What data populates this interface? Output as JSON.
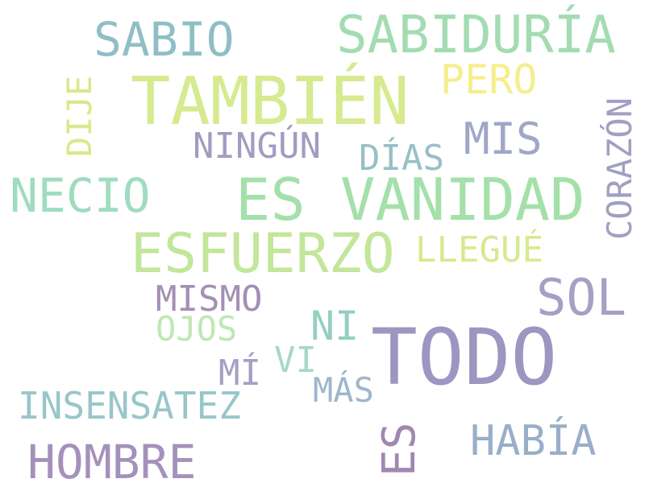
{
  "words": [
    {
      "text": "SABIO",
      "color": "#8fbfc4"
    },
    {
      "text": "SABIDURÍA",
      "color": "#a3dcb2"
    },
    {
      "text": "TAMBIÉN",
      "color": "#d6ea8f"
    },
    {
      "text": "PERO",
      "color": "#f4ee8d"
    },
    {
      "text": "DIJE",
      "color": "#dbe78a"
    },
    {
      "text": "CORAZÓN",
      "color": "#a19fc2"
    },
    {
      "text": "NINGÚN",
      "color": "#a49bbf"
    },
    {
      "text": "MIS",
      "color": "#9fa7c8"
    },
    {
      "text": "DÍAS",
      "color": "#98bfc6"
    },
    {
      "text": "NECIO",
      "color": "#9fdcc0"
    },
    {
      "text": "ES VANIDAD",
      "color": "#a4e0aa"
    },
    {
      "text": "ESFUERZO",
      "color": "#c2e69a"
    },
    {
      "text": "LLEGUÉ",
      "color": "#d6ea8f"
    },
    {
      "text": "SOL",
      "color": "#a3a1c4"
    },
    {
      "text": "MISMO",
      "color": "#a58fb6"
    },
    {
      "text": "NI",
      "color": "#94cfc2"
    },
    {
      "text": "OJOS",
      "color": "#bfe7b4"
    },
    {
      "text": "TODO",
      "color": "#9c97c0"
    },
    {
      "text": "VI",
      "color": "#a7d9c4"
    },
    {
      "text": "MÍ",
      "color": "#a5a0c3"
    },
    {
      "text": "MÁS",
      "color": "#9fb6cc"
    },
    {
      "text": "INSENSATEZ",
      "color": "#98c6c9"
    },
    {
      "text": "ES",
      "color": "#a287b1"
    },
    {
      "text": "HABÍA",
      "color": "#99aec8"
    },
    {
      "text": "HOMBRE",
      "color": "#a491bb"
    }
  ]
}
